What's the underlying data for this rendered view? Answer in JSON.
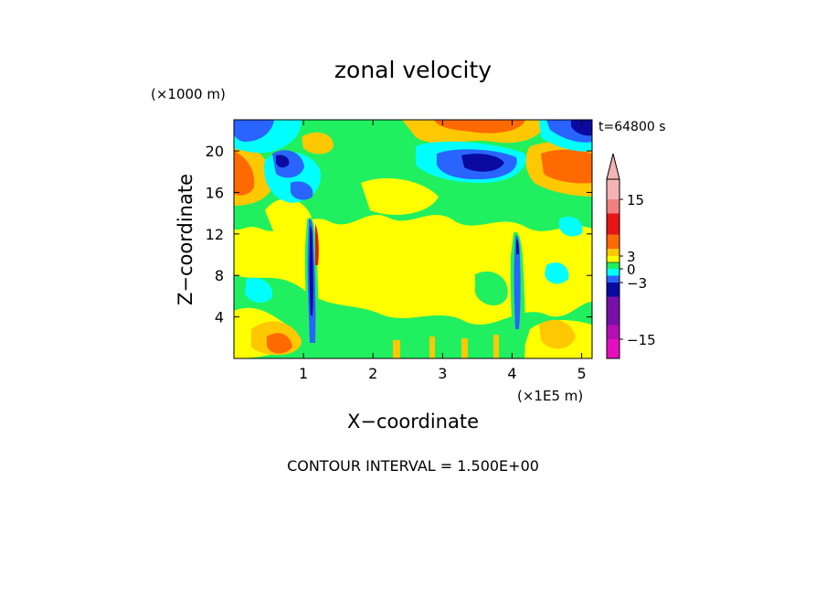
{
  "chart_data": {
    "type": "heatmap",
    "title": "zonal velocity",
    "xlabel": "X−coordinate",
    "ylabel": "Z−coordinate",
    "x_unit": "(×1E5 m)",
    "y_unit": "(×1000 m)",
    "time_label": "t=64800 s",
    "contour_interval_label": "CONTOUR INTERVAL = 1.500E+00",
    "xlim": [
      0,
      5.15
    ],
    "ylim": [
      0,
      23
    ],
    "x_ticks": [
      "1",
      "2",
      "3",
      "4",
      "5"
    ],
    "y_ticks": [
      "4",
      "8",
      "12",
      "16",
      "20"
    ],
    "colorbar": {
      "tick_labels": [
        "−15",
        "−3",
        "0",
        "3",
        "15"
      ],
      "levels": [
        -18,
        -16.5,
        -15,
        -13.5,
        -12,
        -10.5,
        -9,
        -7.5,
        -6,
        -4.5,
        -3,
        -1.5,
        0,
        1.5,
        3,
        4.5,
        6,
        7.5,
        9,
        10.5,
        12,
        13.5,
        15,
        16.5,
        18
      ],
      "colors": {
        "below_-15": "#e60fbe",
        "-15_-12": "#b40fb4",
        "-12_-6": "#7810a8",
        "-6_-3": "#0a0aa0",
        "-3_-1.5": "#2a64ff",
        "-1.5_0": "#00ffff",
        "0_1.5": "#20f060",
        "1.5_3": "#ffff00",
        "3_4.5": "#ffc800",
        "4.5_7.5": "#ff6a00",
        "7.5_12": "#e61414",
        "12_15": "#f08080",
        "above_15": "#f5b4b4"
      }
    },
    "field_description_values": {
      "dominant": 1.5,
      "upper_left_jet": 6,
      "top_right_jet": 6,
      "mid_upper_negative": -4.5,
      "upper_left_negative": -4.5,
      "narrow_columns_x": [
        1.08,
        4.05
      ],
      "narrow_columns_min": -6
    }
  }
}
